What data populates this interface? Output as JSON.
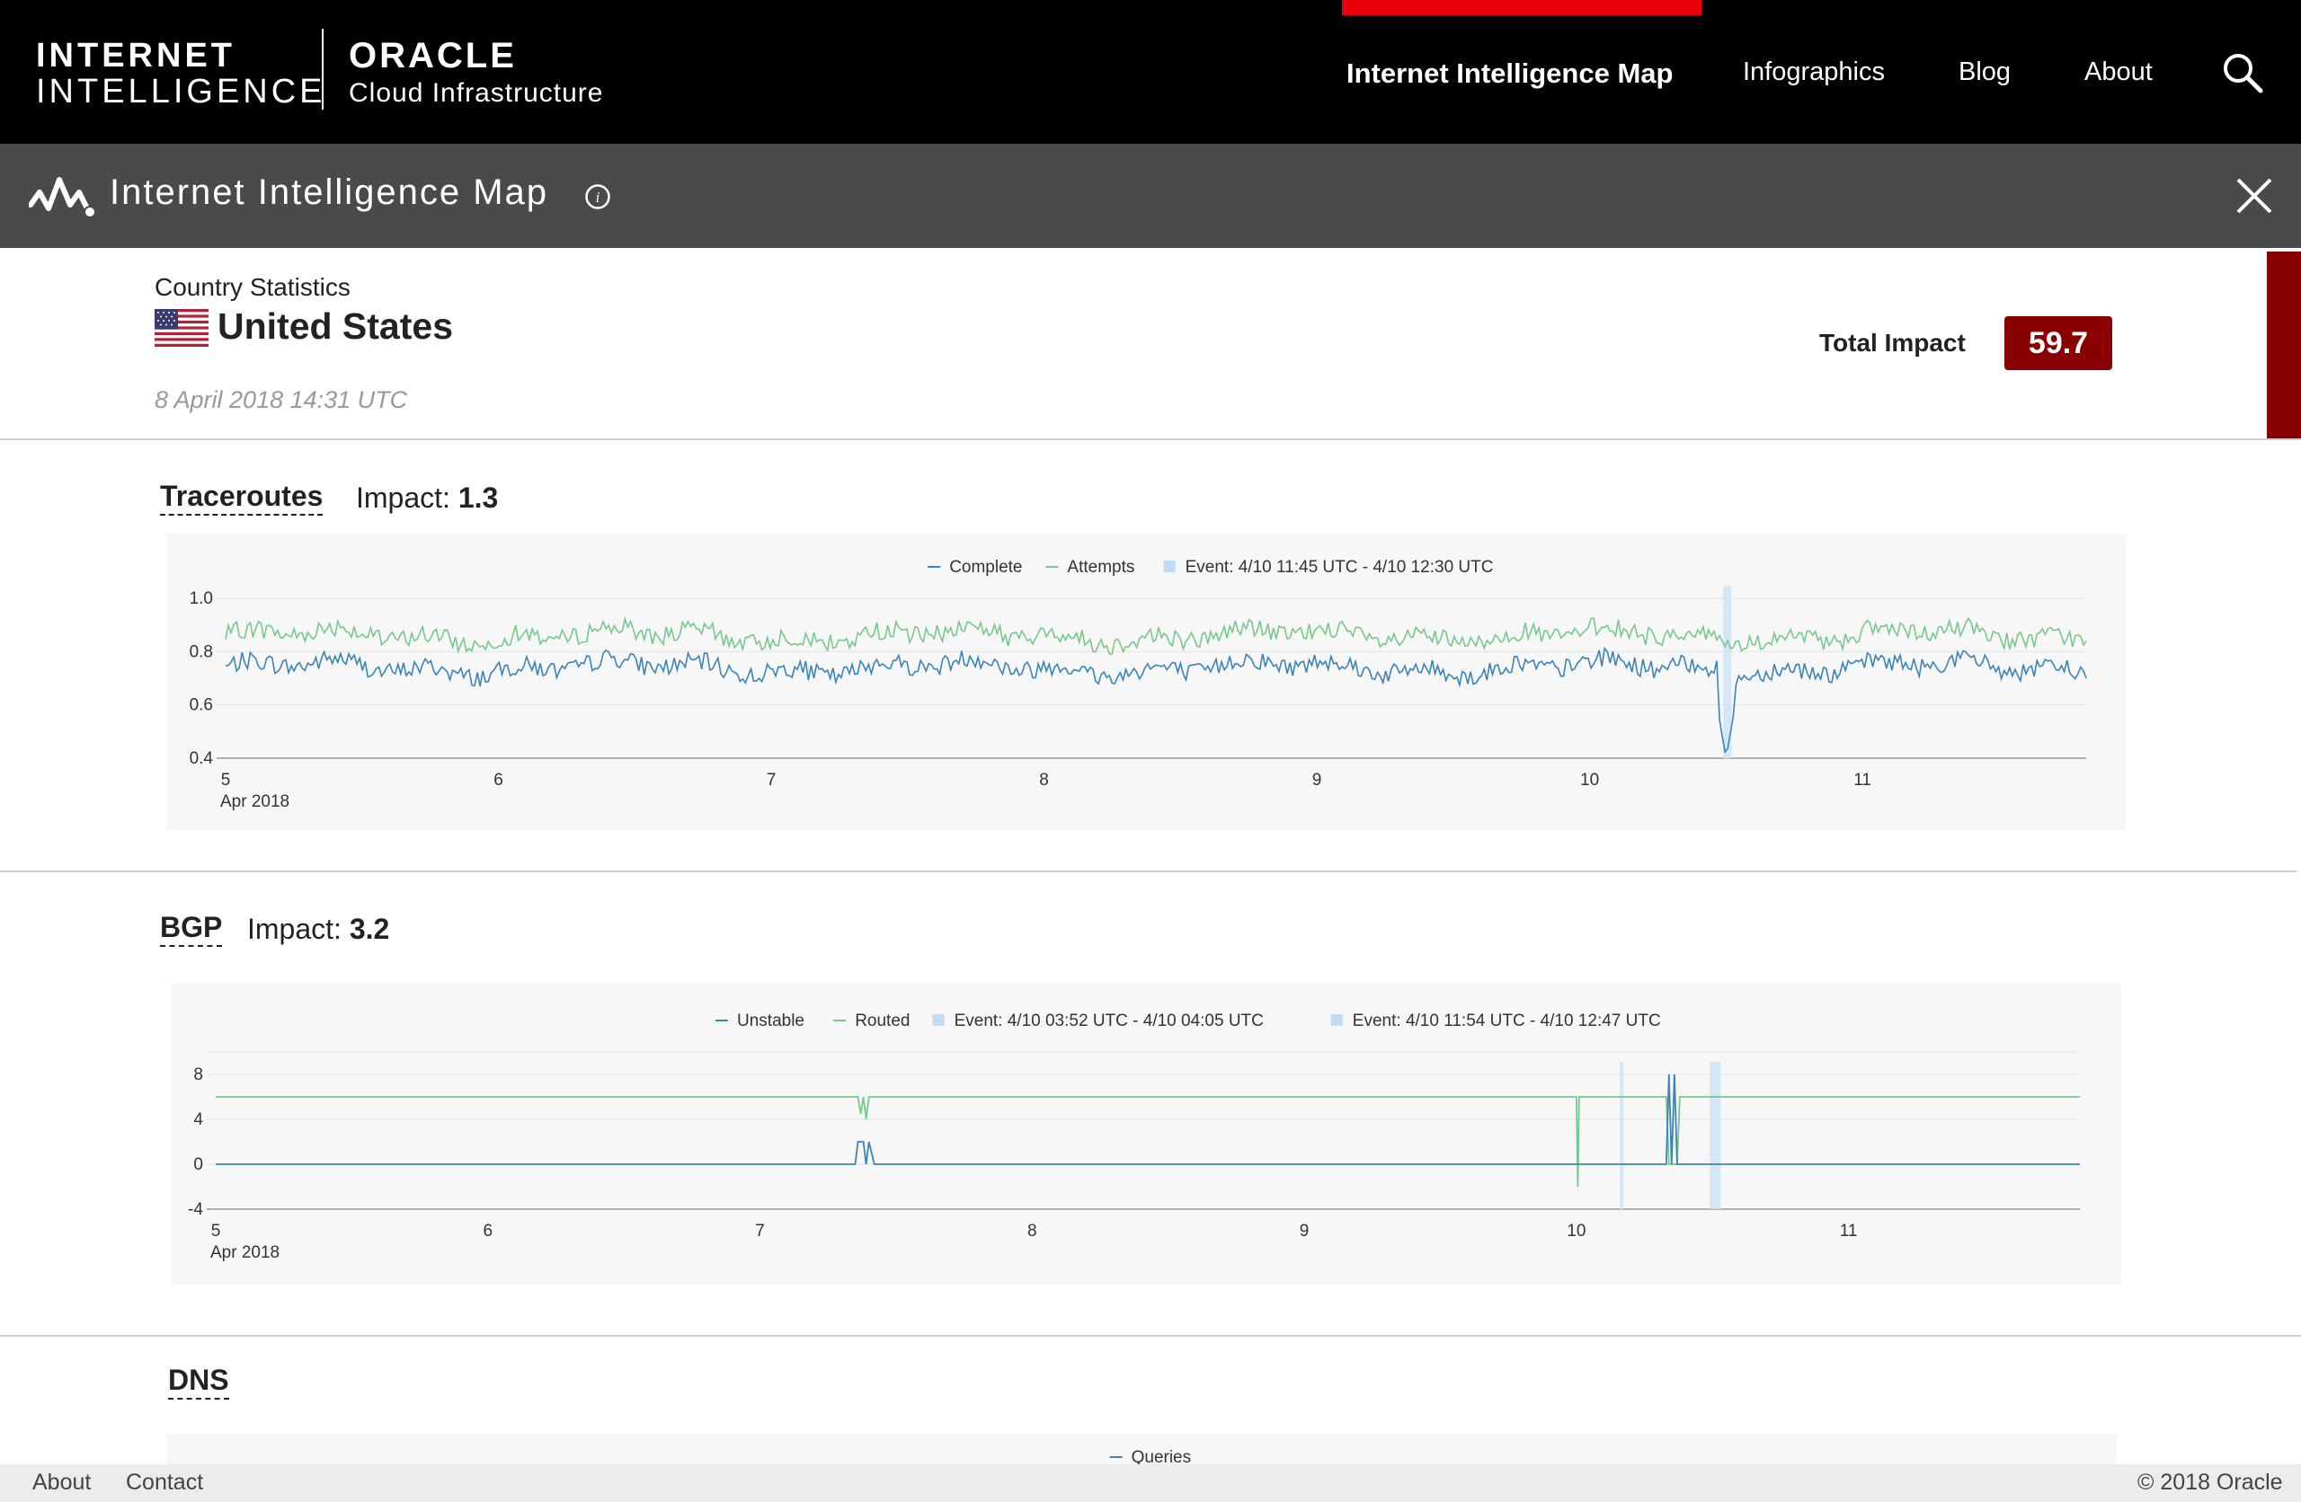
{
  "nav": {
    "brand_ii_line1": "INTERNET",
    "brand_ii_line2": "INTELLIGENCE",
    "brand_oracle_line1": "ORACLE",
    "brand_oracle_line2": "Cloud Infrastructure",
    "items": [
      "Internet Intelligence Map",
      "Infographics",
      "Blog",
      "About"
    ],
    "active_item": "Internet Intelligence Map",
    "search_icon": "search-icon",
    "accent_color": "#e8000b"
  },
  "titlebar": {
    "title": "Internet Intelligence Map",
    "info_icon": "info-icon",
    "close_icon": "close-icon"
  },
  "country": {
    "label": "Country Statistics",
    "name": "United States",
    "timestamp": "8 April 2018 14:31 UTC",
    "total_impact_label": "Total Impact",
    "total_impact": "59.7",
    "flag_icon": "us-flag-icon",
    "impact_color": "#8a0000"
  },
  "sections": {
    "traceroutes": {
      "title": "Traceroutes",
      "impact_label": "Impact:",
      "impact": "1.3"
    },
    "bgp": {
      "title": "BGP",
      "impact_label": "Impact:",
      "impact": "3.2"
    },
    "dns": {
      "title": "DNS"
    }
  },
  "chart_data": [
    {
      "type": "line",
      "x_ticks": [
        "5",
        "6",
        "7",
        "8",
        "9",
        "10",
        "11"
      ],
      "x_sublabel": "Apr 2018",
      "y_ticks": [
        "1.0",
        "0.8",
        "0.6",
        "0.4"
      ],
      "ylim": [
        0.4,
        1.0
      ],
      "legend_position": "top-center",
      "series": [
        {
          "name": "Complete",
          "color": "#3b84b8",
          "baseline": 0.74,
          "amplitude": 0.04
        },
        {
          "name": "Attempts",
          "color": "#77c98b",
          "baseline": 0.86,
          "amplitude": 0.04
        }
      ],
      "events": [
        {
          "label": "Event: 4/10 11:45 UTC - 4/10 12:30 UTC",
          "start_day": 10.49,
          "end_day": 10.52
        }
      ],
      "dip": {
        "series": "Complete",
        "at_day": 10.5,
        "min": 0.4
      },
      "grid": true
    },
    {
      "type": "line",
      "x_ticks": [
        "5",
        "6",
        "7",
        "8",
        "9",
        "10",
        "11"
      ],
      "x_sublabel": "Apr 2018",
      "y_ticks": [
        "8",
        "4",
        "0",
        "-4"
      ],
      "ylim": [
        -4,
        8
      ],
      "legend_position": "top-center",
      "series": [
        {
          "name": "Unstable",
          "color": "#3b84b8",
          "baseline": 0
        },
        {
          "name": "Routed",
          "color": "#77c98b",
          "baseline": 6
        }
      ],
      "events": [
        {
          "label": "Event: 4/10 03:52 UTC - 4/10 04:05 UTC",
          "start_day": 10.16,
          "end_day": 10.17
        },
        {
          "label": "Event: 4/10 11:54 UTC - 4/10 12:47 UTC",
          "start_day": 10.49,
          "end_day": 10.53
        }
      ],
      "grid": true
    },
    {
      "type": "line",
      "legend_position": "top-center",
      "series": [
        {
          "name": "Queries",
          "color": "#3b84b8"
        }
      ]
    }
  ],
  "footer": {
    "about": "About",
    "contact": "Contact",
    "copyright": "© 2018 Oracle"
  }
}
